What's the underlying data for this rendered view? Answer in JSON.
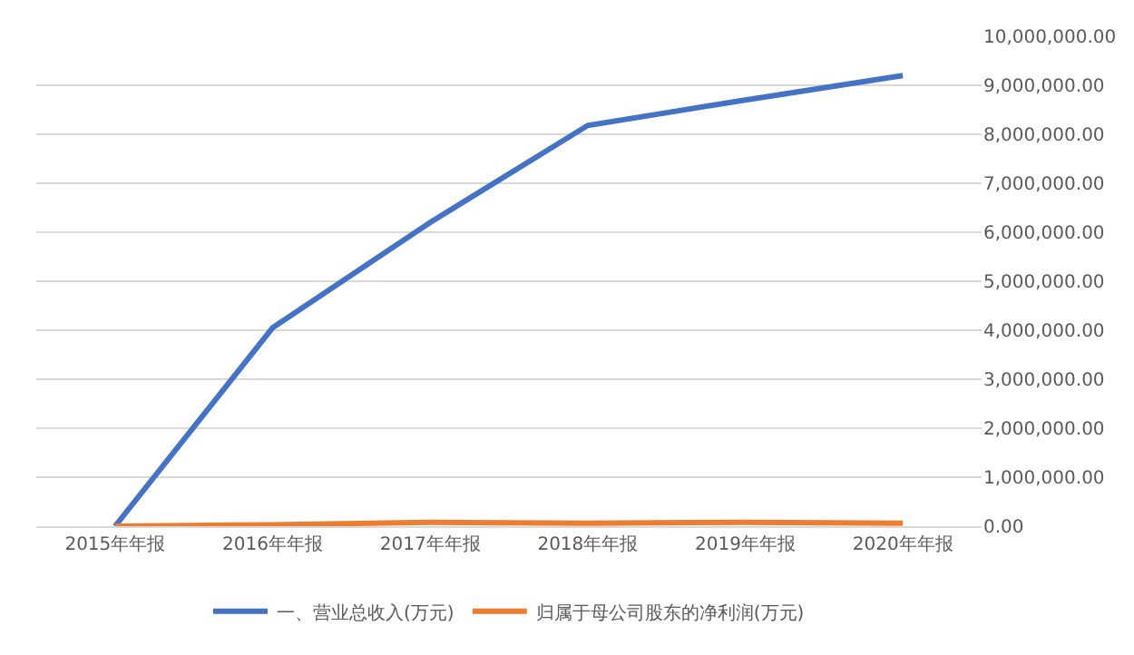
{
  "chart_data": {
    "type": "line",
    "categories": [
      "2015年年报",
      "2016年年报",
      "2017年年报",
      "2018年年报",
      "2019年年报",
      "2020年年报"
    ],
    "series": [
      {
        "name": "一、营业总收入(万元)",
        "color": "#4472c4",
        "values": [
          0,
          4050000,
          6200000,
          8180000,
          8700000,
          9200000
        ]
      },
      {
        "name": "归属于母公司股东的净利润(万元)",
        "color": "#ed7d31",
        "values": [
          0,
          30000,
          80000,
          60000,
          80000,
          60000
        ]
      }
    ],
    "ylim": [
      0,
      10000000
    ],
    "yticks": [
      {
        "value": 0,
        "label": "0.00"
      },
      {
        "value": 1000000,
        "label": "1,000,000.00"
      },
      {
        "value": 2000000,
        "label": "2,000,000.00"
      },
      {
        "value": 3000000,
        "label": "3,000,000.00"
      },
      {
        "value": 4000000,
        "label": "4,000,000.00"
      },
      {
        "value": 5000000,
        "label": "5,000,000.00"
      },
      {
        "value": 6000000,
        "label": "6,000,000.00"
      },
      {
        "value": 7000000,
        "label": "7,000,000.00"
      },
      {
        "value": 8000000,
        "label": "8,000,000.00"
      },
      {
        "value": 9000000,
        "label": "9,000,000.00"
      },
      {
        "value": 10000000,
        "label": "10,000,000.00"
      }
    ],
    "grid": "y",
    "legend": "bottom",
    "marker": "none",
    "line_style": "solid"
  }
}
